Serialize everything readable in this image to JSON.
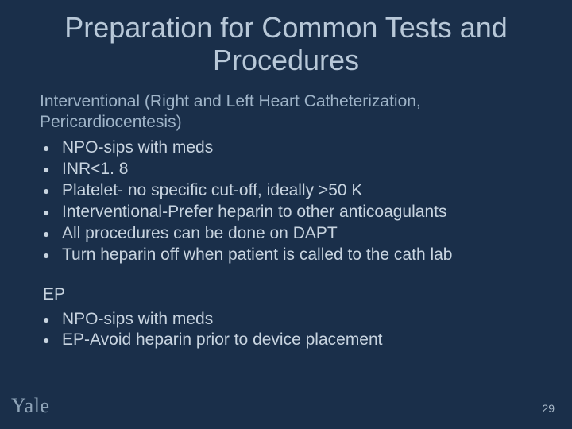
{
  "colors": {
    "background": "#1a2f4a",
    "title": "#b8c8d8",
    "subtitle": "#9fb4c8",
    "body": "#c8d4e0",
    "logo": "#8fa4b8",
    "pagenum": "#a8b8c8"
  },
  "typography": {
    "title_fontsize": 36,
    "subtitle_fontsize": 21,
    "body_fontsize": 21,
    "logo_fontsize": 26,
    "pagenum_fontsize": 14,
    "font_family": "Arial"
  },
  "title": "Preparation for Common Tests and Procedures",
  "section1": {
    "heading": "Interventional (Right and Left Heart Catheterization, Pericardiocentesis)",
    "bullets": [
      "NPO-sips with meds",
      "INR<1. 8",
      "Platelet- no specific cut-off, ideally >50 K",
      "Interventional-Prefer heparin to other anticoagulants",
      "All procedures can be done on DAPT",
      "Turn heparin off when patient is called to the cath lab"
    ]
  },
  "section2": {
    "heading": "EP",
    "bullets": [
      "NPO-sips with meds",
      "EP-Avoid heparin prior to device placement"
    ]
  },
  "footer": {
    "logo_text": "Yale",
    "page_number": "29"
  }
}
